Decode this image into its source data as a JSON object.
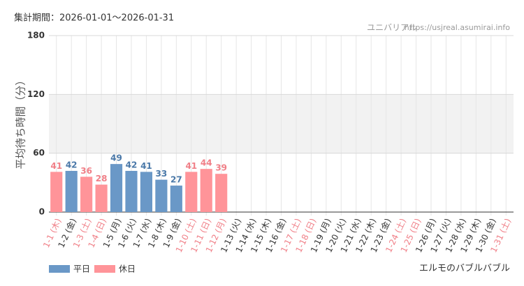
{
  "chart_data": {
    "type": "bar",
    "title": "集計期間：2026-01-01～2026-01-31",
    "source": "ユニバリアル",
    "url": "https://usjreal.asumirai.info",
    "ylabel": "平均待ち時間（分）",
    "attraction": "エルモのバブルバブル",
    "categories": [
      "1-1 (木)",
      "1-2 (金)",
      "1-3 (土)",
      "1-4 (日)",
      "1-5 (月)",
      "1-6 (火)",
      "1-7 (水)",
      "1-8 (木)",
      "1-9 (金)",
      "1-10 (土)",
      "1-11 (日)",
      "1-12 (月)",
      "1-13 (火)",
      "1-14 (水)",
      "1-15 (木)",
      "1-16 (金)",
      "1-17 (土)",
      "1-18 (日)",
      "1-19 (月)",
      "1-20 (火)",
      "1-21 (水)",
      "1-22 (木)",
      "1-23 (金)",
      "1-24 (土)",
      "1-25 (日)",
      "1-26 (月)",
      "1-27 (火)",
      "1-28 (水)",
      "1-29 (木)",
      "1-30 (金)",
      "1-31 (土)"
    ],
    "category_colors": [
      "#f07f87",
      "#333333",
      "#f07f87",
      "#f07f87",
      "#333333",
      "#333333",
      "#333333",
      "#333333",
      "#333333",
      "#f07f87",
      "#f07f87",
      "#f07f87",
      "#333333",
      "#333333",
      "#333333",
      "#333333",
      "#f07f87",
      "#f07f87",
      "#333333",
      "#333333",
      "#333333",
      "#333333",
      "#333333",
      "#f07f87",
      "#f07f87",
      "#333333",
      "#333333",
      "#333333",
      "#333333",
      "#333333",
      "#f07f87"
    ],
    "series": [
      {
        "name": "平日",
        "color": "#6a98c7",
        "label_color": "#4a78a8",
        "values": [
          null,
          42,
          null,
          null,
          49,
          42,
          41,
          33,
          27,
          null,
          null,
          null,
          null,
          null,
          null,
          null,
          null,
          null,
          null,
          null,
          null,
          null,
          null,
          null,
          null,
          null,
          null,
          null,
          null,
          null,
          null
        ]
      },
      {
        "name": "休日",
        "color": "#ff9499",
        "label_color": "#f07f87",
        "values": [
          41,
          null,
          36,
          28,
          null,
          null,
          null,
          null,
          null,
          41,
          44,
          39,
          null,
          null,
          null,
          null,
          null,
          null,
          null,
          null,
          null,
          null,
          null,
          null,
          null,
          null,
          null,
          null,
          null,
          null,
          null
        ]
      }
    ],
    "ylim": [
      0,
      180
    ],
    "yticks": [
      0,
      60,
      120,
      180
    ],
    "band": [
      60,
      120
    ],
    "grid": true
  }
}
